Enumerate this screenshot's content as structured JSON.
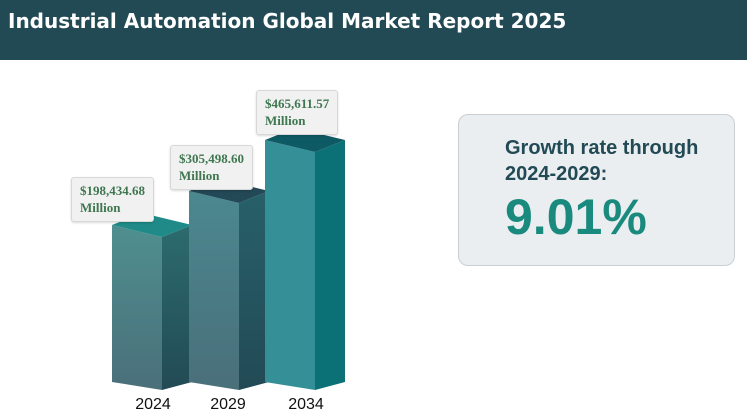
{
  "header": {
    "title": "Industrial Automation Global Market Report 2025"
  },
  "chart_data": {
    "type": "bar",
    "categories": [
      "2024",
      "2029",
      "2034"
    ],
    "values": [
      198434.68,
      305498.6,
      465611.57
    ],
    "data_labels": [
      "$198,434.68 Million",
      "$305,498.60 Million",
      "$465,611.57 Million"
    ],
    "label_lines": [
      [
        "$198,434.68",
        "Million"
      ],
      [
        "$305,498.60",
        "Million"
      ],
      [
        "$465,611.57",
        "Million"
      ]
    ],
    "unit": "Million USD",
    "style": "3d-columns",
    "colors": [
      "#3d7f80",
      "#2e6670",
      "#1e8a90"
    ]
  },
  "growth": {
    "title_line1": "Growth rate through",
    "title_line2": "2024-2029:",
    "value": "9.01%"
  }
}
